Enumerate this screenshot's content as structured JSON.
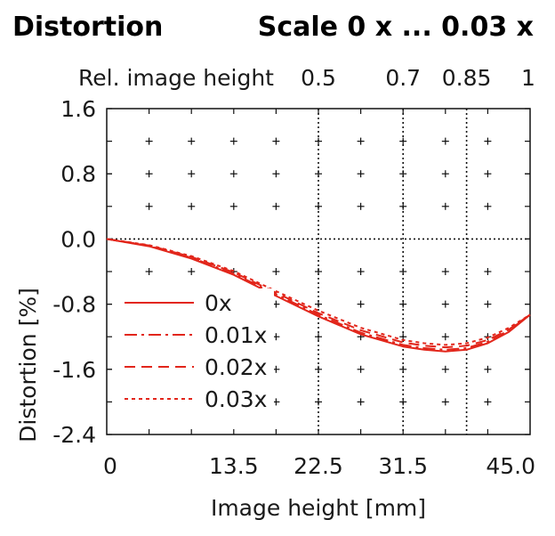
{
  "header": {
    "title": "Distortion",
    "scale_label": "Scale 0 x ... 0.03 x"
  },
  "chart_data": {
    "type": "line",
    "title": "Distortion",
    "xlabel": "Image height [mm]",
    "ylabel": "Distortion [%]",
    "top_axis_label": "Rel. image height",
    "xlim": [
      0,
      45
    ],
    "ylim": [
      -2.4,
      1.6
    ],
    "x_ticks": [
      0,
      13.5,
      22.5,
      31.5,
      45
    ],
    "x_tick_labels": [
      "0",
      "13.5",
      "22.5",
      "31.5",
      "45.0"
    ],
    "y_ticks": [
      1.6,
      0.8,
      0.0,
      -0.8,
      -1.6,
      -2.4
    ],
    "y_tick_labels": [
      "1.6",
      "0.8",
      "0.0",
      "-0.8",
      "-1.6",
      "-2.4"
    ],
    "top_ticks": [
      {
        "label": "0.5",
        "x": 22.5
      },
      {
        "label": "0.7",
        "x": 31.5
      },
      {
        "label": "0.85",
        "x": 38.25
      },
      {
        "label": "1",
        "x": 45
      }
    ],
    "colors": {
      "series": "#e2261b",
      "grid": "#111111"
    },
    "legend_position": "bottom-left",
    "series": [
      {
        "name": "0x",
        "dash": "solid",
        "x": [
          0,
          4.5,
          9,
          13.5,
          18,
          22.5,
          27,
          31.5,
          33.75,
          36,
          38.25,
          40.5,
          42.75,
          45
        ],
        "y": [
          0,
          -0.09,
          -0.24,
          -0.44,
          -0.7,
          -0.95,
          -1.17,
          -1.32,
          -1.36,
          -1.38,
          -1.36,
          -1.28,
          -1.14,
          -0.93
        ]
      },
      {
        "name": "0.01x",
        "dash": "dashdot",
        "x": [
          0,
          4.5,
          9,
          13.5,
          18,
          22.5,
          27,
          31.5,
          33.75,
          36,
          38.25,
          40.5,
          42.75,
          45
        ],
        "y": [
          0,
          -0.085,
          -0.23,
          -0.425,
          -0.68,
          -0.93,
          -1.15,
          -1.3,
          -1.34,
          -1.36,
          -1.34,
          -1.26,
          -1.12,
          -0.93
        ]
      },
      {
        "name": "0.02x",
        "dash": "dashed",
        "x": [
          0,
          4.5,
          9,
          13.5,
          18,
          22.5,
          27,
          31.5,
          33.75,
          36,
          38.25,
          40.5,
          42.75,
          45
        ],
        "y": [
          0,
          -0.08,
          -0.22,
          -0.41,
          -0.66,
          -0.91,
          -1.12,
          -1.27,
          -1.31,
          -1.33,
          -1.31,
          -1.24,
          -1.11,
          -0.93
        ]
      },
      {
        "name": "0.03x",
        "dash": "dotted",
        "x": [
          0,
          4.5,
          9,
          13.5,
          18,
          22.5,
          27,
          31.5,
          33.75,
          36,
          38.25,
          40.5,
          42.75,
          45
        ],
        "y": [
          0,
          -0.075,
          -0.21,
          -0.395,
          -0.64,
          -0.88,
          -1.09,
          -1.24,
          -1.28,
          -1.3,
          -1.28,
          -1.21,
          -1.09,
          -0.93
        ]
      }
    ],
    "legend_labels": [
      "0x",
      "0.01x",
      "0.02x",
      "0.03x"
    ]
  }
}
